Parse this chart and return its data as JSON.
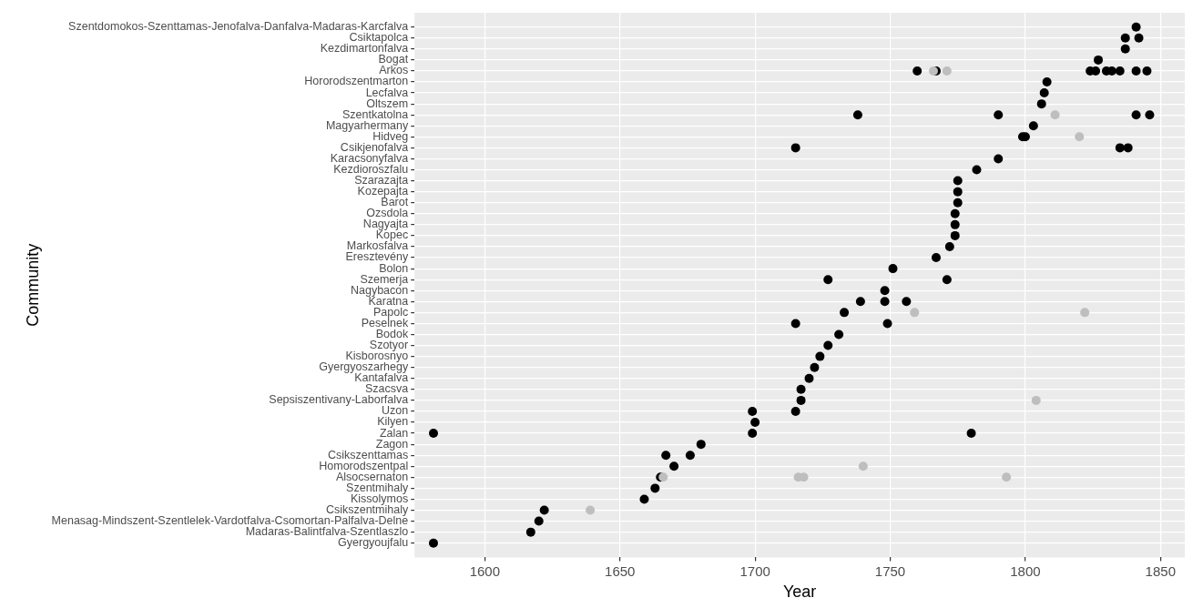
{
  "chart_data": {
    "type": "scatter",
    "orientation": "horizontal",
    "xlabel": "Year",
    "ylabel": "Community",
    "grid": true,
    "legend": false,
    "marker": "circle",
    "categories": [
      "Szentdomokos-Szenttamas-Jenofalva-Danfalva-Madaras-Karcfalva",
      "Csiktapolca",
      "Kezdimartonfalva",
      "Bogat",
      "Arkos",
      "Hororodszentmarton",
      "Lecfalva",
      "Oltszem",
      "Szentkatolna",
      "Magyarhermany",
      "Hidveg",
      "Csikjenofalva",
      "Karacsonyfalva",
      "Kezdioroszfalu",
      "Szarazajta",
      "Kozepajta",
      "Barot",
      "Ozsdola",
      "Nagyajta",
      "Kopec",
      "Markosfalva",
      "Eresztevény",
      "Bolon",
      "Szemerja",
      "Nagybacon",
      "Karatna",
      "Papolc",
      "Peselnek",
      "Bodok",
      "Szotyor",
      "Kisborosnyo",
      "Gyergyoszarhegy",
      "Kantafalva",
      "Szacsva",
      "Sepsiszentivany-Laborfalva",
      "Uzon",
      "Kilyen",
      "Zalan",
      "Zagon",
      "Csikszenttamas",
      "Homorodszentpal",
      "Alsocsernaton",
      "Szentmihaly",
      "Kissolymos",
      "Csikszentmihaly",
      "Menasag-Mindszent-Szentlelek-Vardotfalva-Csomortan-Palfalva-Delne",
      "Madaras-Balintfalva-Szentlaszlo",
      "Gyergyoujfalu"
    ],
    "xlim": [
      1574,
      1859
    ],
    "xticks": [
      1600,
      1650,
      1700,
      1750,
      1800,
      1850
    ],
    "series": [
      {
        "color": "#bebebe",
        "values": [
          null,
          null,
          null,
          null,
          1766,
          null,
          null,
          null,
          1811,
          null,
          1820,
          null,
          null,
          null,
          null,
          null,
          null,
          null,
          null,
          null,
          null,
          null,
          null,
          null,
          null,
          null,
          1759,
          null,
          null,
          null,
          null,
          null,
          null,
          null,
          1804,
          null,
          null,
          null,
          null,
          null,
          1740,
          1666,
          null,
          null,
          1639,
          null,
          null,
          null
        ]
      },
      {
        "color": "#bebebe",
        "values": [
          null,
          null,
          null,
          null,
          1771,
          null,
          null,
          null,
          null,
          null,
          null,
          null,
          null,
          null,
          null,
          null,
          null,
          null,
          null,
          null,
          null,
          null,
          null,
          null,
          null,
          null,
          1822,
          null,
          null,
          null,
          null,
          null,
          null,
          null,
          null,
          null,
          null,
          null,
          null,
          null,
          null,
          1716,
          null,
          null,
          null,
          null,
          null,
          null
        ]
      },
      {
        "color": "#bebebe",
        "values": [
          null,
          null,
          null,
          null,
          null,
          null,
          null,
          null,
          null,
          null,
          null,
          null,
          null,
          null,
          null,
          null,
          null,
          null,
          null,
          null,
          null,
          null,
          null,
          null,
          null,
          null,
          null,
          null,
          null,
          null,
          null,
          null,
          null,
          null,
          null,
          null,
          null,
          null,
          null,
          null,
          null,
          1718,
          null,
          null,
          null,
          null,
          null,
          null
        ]
      },
      {
        "color": "#bebebe",
        "values": [
          null,
          null,
          null,
          null,
          null,
          null,
          null,
          null,
          null,
          null,
          null,
          null,
          null,
          null,
          null,
          null,
          null,
          null,
          null,
          null,
          null,
          null,
          null,
          null,
          null,
          null,
          null,
          null,
          null,
          null,
          null,
          null,
          null,
          null,
          null,
          null,
          null,
          null,
          null,
          null,
          null,
          1793,
          null,
          null,
          null,
          null,
          null,
          null
        ]
      },
      {
        "color": "#000000",
        "values": [
          1841,
          1837,
          1837,
          1827,
          1760,
          1808,
          1807,
          1806,
          1738,
          1803,
          1799,
          1715,
          1790,
          1782,
          1775,
          1775,
          1775,
          1774,
          1774,
          1774,
          1772,
          1767,
          1751,
          1727,
          1748,
          1739,
          1733,
          1715,
          1731,
          1727,
          1724,
          1722,
          1720,
          1717,
          1717,
          1699,
          1700,
          1581,
          1680,
          1667,
          1670,
          1665,
          1663,
          1659,
          1622,
          1620,
          1617,
          1581
        ]
      },
      {
        "color": "#000000",
        "values": [
          null,
          1842,
          null,
          null,
          1767,
          null,
          null,
          null,
          1790,
          null,
          1800,
          1835,
          null,
          null,
          null,
          null,
          null,
          null,
          null,
          null,
          null,
          null,
          null,
          1771,
          null,
          1748,
          null,
          1749,
          null,
          null,
          null,
          null,
          null,
          null,
          null,
          1715,
          null,
          1699,
          null,
          1676,
          null,
          null,
          null,
          null,
          null,
          null,
          null,
          null
        ]
      },
      {
        "color": "#000000",
        "values": [
          null,
          null,
          null,
          null,
          1824,
          null,
          null,
          null,
          1841,
          null,
          null,
          1838,
          null,
          null,
          null,
          null,
          null,
          null,
          null,
          null,
          null,
          null,
          null,
          null,
          null,
          1756,
          null,
          null,
          null,
          null,
          null,
          null,
          null,
          null,
          null,
          null,
          null,
          1780,
          null,
          null,
          null,
          null,
          null,
          null,
          null,
          null,
          null,
          null
        ]
      },
      {
        "color": "#000000",
        "values": [
          null,
          null,
          null,
          null,
          1826,
          null,
          null,
          null,
          1846,
          null,
          null,
          null,
          null,
          null,
          null,
          null,
          null,
          null,
          null,
          null,
          null,
          null,
          null,
          null,
          null,
          null,
          null,
          null,
          null,
          null,
          null,
          null,
          null,
          null,
          null,
          null,
          null,
          null,
          null,
          null,
          null,
          null,
          null,
          null,
          null,
          null,
          null,
          null
        ]
      },
      {
        "color": "#000000",
        "values": [
          null,
          null,
          null,
          null,
          1830,
          null,
          null,
          null,
          null,
          null,
          null,
          null,
          null,
          null,
          null,
          null,
          null,
          null,
          null,
          null,
          null,
          null,
          null,
          null,
          null,
          null,
          null,
          null,
          null,
          null,
          null,
          null,
          null,
          null,
          null,
          null,
          null,
          null,
          null,
          null,
          null,
          null,
          null,
          null,
          null,
          null,
          null,
          null
        ]
      },
      {
        "color": "#000000",
        "values": [
          null,
          null,
          null,
          null,
          1832,
          null,
          null,
          null,
          null,
          null,
          null,
          null,
          null,
          null,
          null,
          null,
          null,
          null,
          null,
          null,
          null,
          null,
          null,
          null,
          null,
          null,
          null,
          null,
          null,
          null,
          null,
          null,
          null,
          null,
          null,
          null,
          null,
          null,
          null,
          null,
          null,
          null,
          null,
          null,
          null,
          null,
          null,
          null
        ]
      },
      {
        "color": "#000000",
        "values": [
          null,
          null,
          null,
          null,
          1835,
          null,
          null,
          null,
          null,
          null,
          null,
          null,
          null,
          null,
          null,
          null,
          null,
          null,
          null,
          null,
          null,
          null,
          null,
          null,
          null,
          null,
          null,
          null,
          null,
          null,
          null,
          null,
          null,
          null,
          null,
          null,
          null,
          null,
          null,
          null,
          null,
          null,
          null,
          null,
          null,
          null,
          null,
          null
        ]
      },
      {
        "color": "#000000",
        "values": [
          null,
          null,
          null,
          null,
          1841,
          null,
          null,
          null,
          null,
          null,
          null,
          null,
          null,
          null,
          null,
          null,
          null,
          null,
          null,
          null,
          null,
          null,
          null,
          null,
          null,
          null,
          null,
          null,
          null,
          null,
          null,
          null,
          null,
          null,
          null,
          null,
          null,
          null,
          null,
          null,
          null,
          null,
          null,
          null,
          null,
          null,
          null,
          null
        ]
      },
      {
        "color": "#000000",
        "values": [
          null,
          null,
          null,
          null,
          1845,
          null,
          null,
          null,
          null,
          null,
          null,
          null,
          null,
          null,
          null,
          null,
          null,
          null,
          null,
          null,
          null,
          null,
          null,
          null,
          null,
          null,
          null,
          null,
          null,
          null,
          null,
          null,
          null,
          null,
          null,
          null,
          null,
          null,
          null,
          null,
          null,
          null,
          null,
          null,
          null,
          null,
          null,
          null
        ]
      }
    ]
  }
}
